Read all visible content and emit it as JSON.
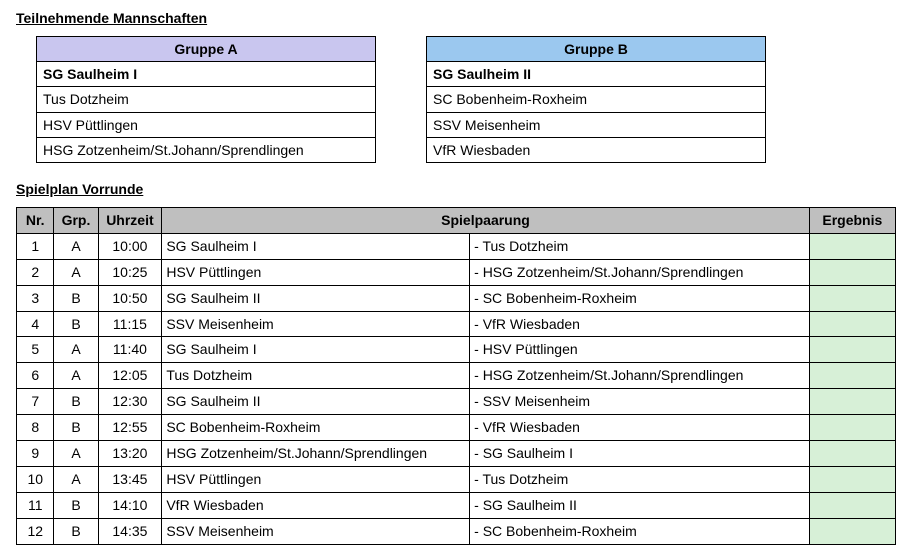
{
  "headings": {
    "teams": "Teilnehmende Mannschaften",
    "schedule": "Spielplan Vorrunde"
  },
  "groups": [
    {
      "title": "Gruppe A",
      "header_color": "#c9c6ef",
      "teams": [
        "SG Saulheim I",
        "Tus Dotzheim",
        "HSV Püttlingen",
        "HSG Zotzenheim/St.Johann/Sprendlingen"
      ],
      "bold_first": true
    },
    {
      "title": "Gruppe B",
      "header_color": "#9bc8ef",
      "teams": [
        "SG Saulheim II",
        "SC Bobenheim-Roxheim",
        "SSV Meisenheim",
        "VfR Wiesbaden"
      ],
      "bold_first": true
    }
  ],
  "schedule": {
    "columns": {
      "nr": "Nr.",
      "grp": "Grp.",
      "time": "Uhrzeit",
      "pairing": "Spielpaarung",
      "result": "Ergebnis"
    },
    "result_bg": "#d7f0d7",
    "header_bg": "#bfbfbf",
    "rows": [
      {
        "nr": 1,
        "grp": "A",
        "time": "10:00",
        "home": "SG Saulheim I",
        "away": "Tus Dotzheim",
        "result": ""
      },
      {
        "nr": 2,
        "grp": "A",
        "time": "10:25",
        "home": "HSV Püttlingen",
        "away": "HSG Zotzenheim/St.Johann/Sprendlingen",
        "result": ""
      },
      {
        "nr": 3,
        "grp": "B",
        "time": "10:50",
        "home": "SG Saulheim II",
        "away": "SC Bobenheim-Roxheim",
        "result": ""
      },
      {
        "nr": 4,
        "grp": "B",
        "time": "11:15",
        "home": "SSV Meisenheim",
        "away": "VfR Wiesbaden",
        "result": ""
      },
      {
        "nr": 5,
        "grp": "A",
        "time": "11:40",
        "home": "SG Saulheim I",
        "away": "HSV Püttlingen",
        "result": ""
      },
      {
        "nr": 6,
        "grp": "A",
        "time": "12:05",
        "home": "Tus Dotzheim",
        "away": "HSG Zotzenheim/St.Johann/Sprendlingen",
        "result": ""
      },
      {
        "nr": 7,
        "grp": "B",
        "time": "12:30",
        "home": "SG Saulheim II",
        "away": "SSV Meisenheim",
        "result": ""
      },
      {
        "nr": 8,
        "grp": "B",
        "time": "12:55",
        "home": "SC Bobenheim-Roxheim",
        "away": "VfR Wiesbaden",
        "result": ""
      },
      {
        "nr": 9,
        "grp": "A",
        "time": "13:20",
        "home": "HSG Zotzenheim/St.Johann/Sprendlingen",
        "away": "SG Saulheim I",
        "result": ""
      },
      {
        "nr": 10,
        "grp": "A",
        "time": "13:45",
        "home": "HSV Püttlingen",
        "away": "Tus Dotzheim",
        "result": ""
      },
      {
        "nr": 11,
        "grp": "B",
        "time": "14:10",
        "home": "VfR Wiesbaden",
        "away": "SG Saulheim II",
        "result": ""
      },
      {
        "nr": 12,
        "grp": "B",
        "time": "14:35",
        "home": "SSV Meisenheim",
        "away": "SC Bobenheim-Roxheim",
        "result": ""
      }
    ]
  }
}
